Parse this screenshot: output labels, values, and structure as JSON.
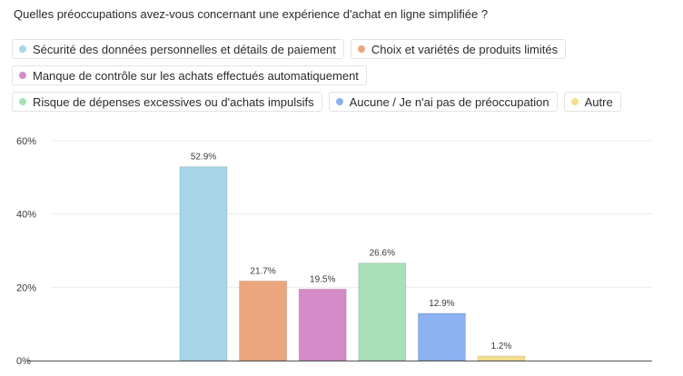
{
  "chart_data": {
    "type": "bar",
    "title": "Quelles préoccupations avez-vous concernant une expérience d'achat en ligne simplifiée ?",
    "categories": [
      "Sécurité des données personnelles et détails de paiement",
      "Choix et variétés de produits limités",
      "Manque de contrôle sur les achats effectués automatiquement",
      "Risque de dépenses excessives ou d'achats impulsifs",
      "Aucune / Je n'ai pas de préoccupation",
      "Autre"
    ],
    "values": [
      52.9,
      21.7,
      19.5,
      26.6,
      12.9,
      1.2
    ],
    "value_labels": [
      "52.9%",
      "21.7%",
      "19.5%",
      "26.6%",
      "12.9%",
      "1.2%"
    ],
    "colors": [
      "#a8d5e8",
      "#eba67e",
      "#d68bc9",
      "#a8e0b8",
      "#8cb1f0",
      "#f5df8e"
    ],
    "y_ticks": [
      "0%",
      "20%",
      "40%",
      "60%"
    ],
    "ylim": [
      0,
      60
    ],
    "grid": true,
    "legend_position": "top"
  }
}
